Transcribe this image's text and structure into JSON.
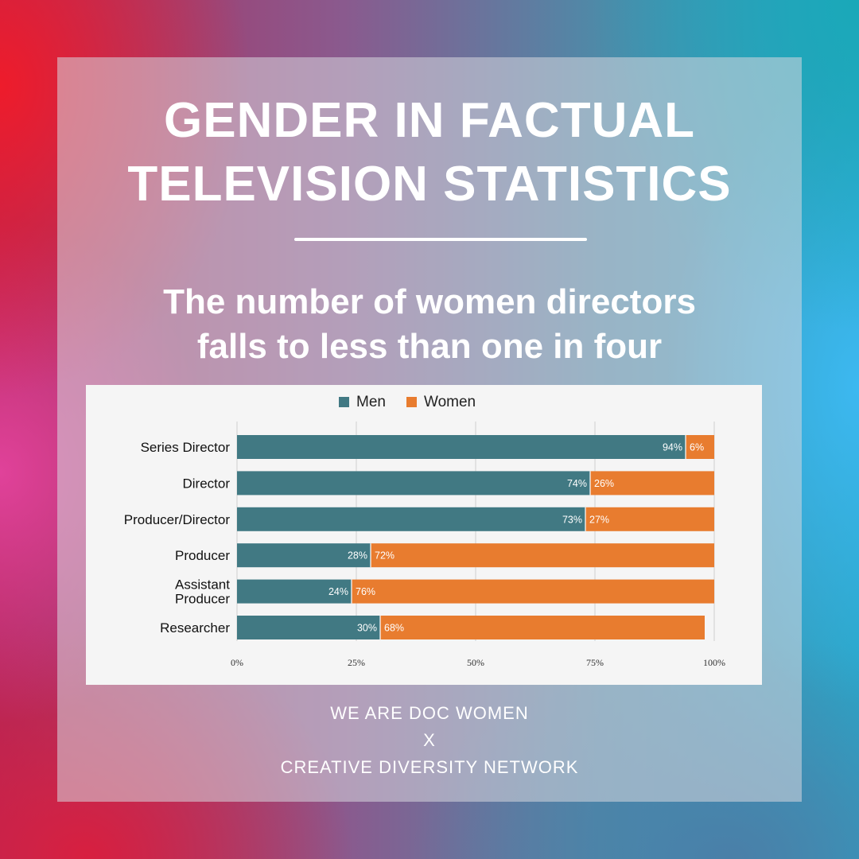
{
  "title_line1": "GENDER IN FACTUAL",
  "title_line2": "TELEVISION STATISTICS",
  "subtitle_line1": "The number of women directors",
  "subtitle_line2": "falls to less than one in four",
  "footer_line1": "WE ARE DOC WOMEN",
  "footer_line2": "X",
  "footer_line3": "CREATIVE DIVERSITY NETWORK",
  "colors": {
    "men": "#417983",
    "women": "#e87c2f",
    "panel": "#f5f5f5"
  },
  "chart_data": {
    "type": "bar",
    "orientation": "horizontal",
    "stacked": true,
    "categories": [
      [
        "Series Director"
      ],
      [
        "Director"
      ],
      [
        "Producer/Director"
      ],
      [
        "Producer"
      ],
      [
        "Assistant",
        "Producer"
      ],
      [
        "Researcher"
      ]
    ],
    "series": [
      {
        "name": "Men",
        "values": [
          94,
          74,
          73,
          28,
          24,
          30
        ],
        "labels": [
          "94%",
          "74%",
          "73%",
          "28%",
          "24%",
          "30%"
        ]
      },
      {
        "name": "Women",
        "values": [
          6,
          26,
          27,
          72,
          76,
          68
        ],
        "labels": [
          "6%",
          "26%",
          "27%",
          "72%",
          "76%",
          "68%"
        ]
      }
    ],
    "xlim": [
      0,
      100
    ],
    "xticks": [
      0,
      25,
      50,
      75,
      100
    ],
    "xtick_labels": [
      "0%",
      "25%",
      "50%",
      "75%",
      "100%"
    ],
    "grid": true,
    "legend": "top-center",
    "title": "",
    "xlabel": "",
    "ylabel": ""
  }
}
